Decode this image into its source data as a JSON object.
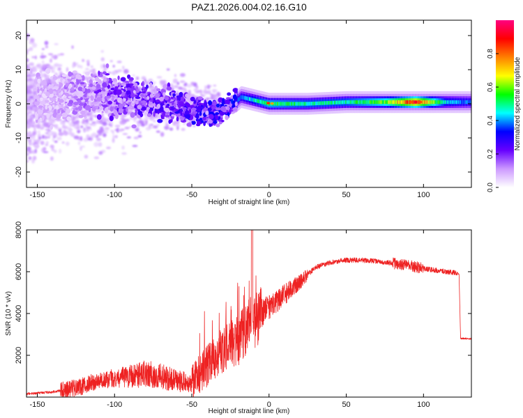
{
  "figure": {
    "title": "PAZ1.2026.004.02.16.G10"
  },
  "chart_data": [
    {
      "type": "heatmap",
      "title": "PAZ1.2026.004.02.16.G10",
      "xlabel": "Height of straight line (km)",
      "ylabel": "Frequency (Hz)",
      "xlim": [
        -157,
        131
      ],
      "ylim": [
        -24.5,
        24.5
      ],
      "xticks": [
        -150,
        -100,
        -50,
        0,
        50,
        100
      ],
      "yticks": [
        -20,
        -10,
        0,
        10,
        20
      ],
      "colorbar": {
        "label": "Normalized spectral amplitude",
        "range": [
          0,
          1
        ],
        "ticks": [
          0.0,
          0.2,
          0.4,
          0.6,
          0.8
        ],
        "tick_labels": [
          "0.0",
          "0.2",
          "0.4",
          "0.6",
          "0.8"
        ],
        "colormap": [
          "#ffffff",
          "#cc99ff",
          "#6600ff",
          "#0000ff",
          "#00ffff",
          "#00ff00",
          "#ffff00",
          "#ff8000",
          "#ff0000",
          "#ff0080"
        ]
      },
      "ridge": [
        {
          "x": -140,
          "y": 2,
          "amp": 0.1
        },
        {
          "x": -110,
          "y": 3,
          "amp": 0.18
        },
        {
          "x": -90,
          "y": 2,
          "amp": 0.22
        },
        {
          "x": -70,
          "y": 0,
          "amp": 0.24
        },
        {
          "x": -50,
          "y": -2,
          "amp": 0.26
        },
        {
          "x": -35,
          "y": -3,
          "amp": 0.28
        },
        {
          "x": -25,
          "y": -1,
          "amp": 0.3
        },
        {
          "x": -18,
          "y": 2,
          "amp": 0.35
        },
        {
          "x": 0,
          "y": 0,
          "amp": 0.5
        },
        {
          "x": 25,
          "y": 0,
          "amp": 0.45
        },
        {
          "x": 50,
          "y": 0.5,
          "amp": 0.45
        },
        {
          "x": 75,
          "y": 0.5,
          "amp": 0.55
        },
        {
          "x": 95,
          "y": 0.5,
          "amp": 0.8
        },
        {
          "x": 115,
          "y": 0.5,
          "amp": 0.4
        },
        {
          "x": 130,
          "y": 0.5,
          "amp": 0.35
        }
      ]
    },
    {
      "type": "line",
      "xlabel": "Height of straight line (km)",
      "ylabel": "SNR (10 * v/v)",
      "xlim": [
        -157,
        131
      ],
      "ylim": [
        0,
        8000
      ],
      "xticks": [
        -150,
        -100,
        -50,
        0,
        50,
        100
      ],
      "yticks": [
        2000,
        4000,
        6000,
        8000
      ],
      "series": [
        {
          "name": "SNR",
          "color": "#ee2222",
          "x": [
            -157,
            -140,
            -130,
            -120,
            -110,
            -100,
            -90,
            -80,
            -70,
            -60,
            -50,
            -40,
            -30,
            -20,
            -12,
            -5,
            0,
            10,
            20,
            30,
            40,
            50,
            60,
            70,
            80,
            90,
            100,
            110,
            120,
            123,
            124,
            131
          ],
          "y": [
            150,
            250,
            350,
            550,
            800,
            900,
            1000,
            1100,
            1000,
            800,
            650,
            1500,
            2200,
            2700,
            3500,
            4000,
            4300,
            4900,
            5500,
            6200,
            6450,
            6550,
            6550,
            6500,
            6400,
            6300,
            6150,
            6050,
            5950,
            5900,
            2800,
            2800
          ]
        }
      ]
    }
  ]
}
